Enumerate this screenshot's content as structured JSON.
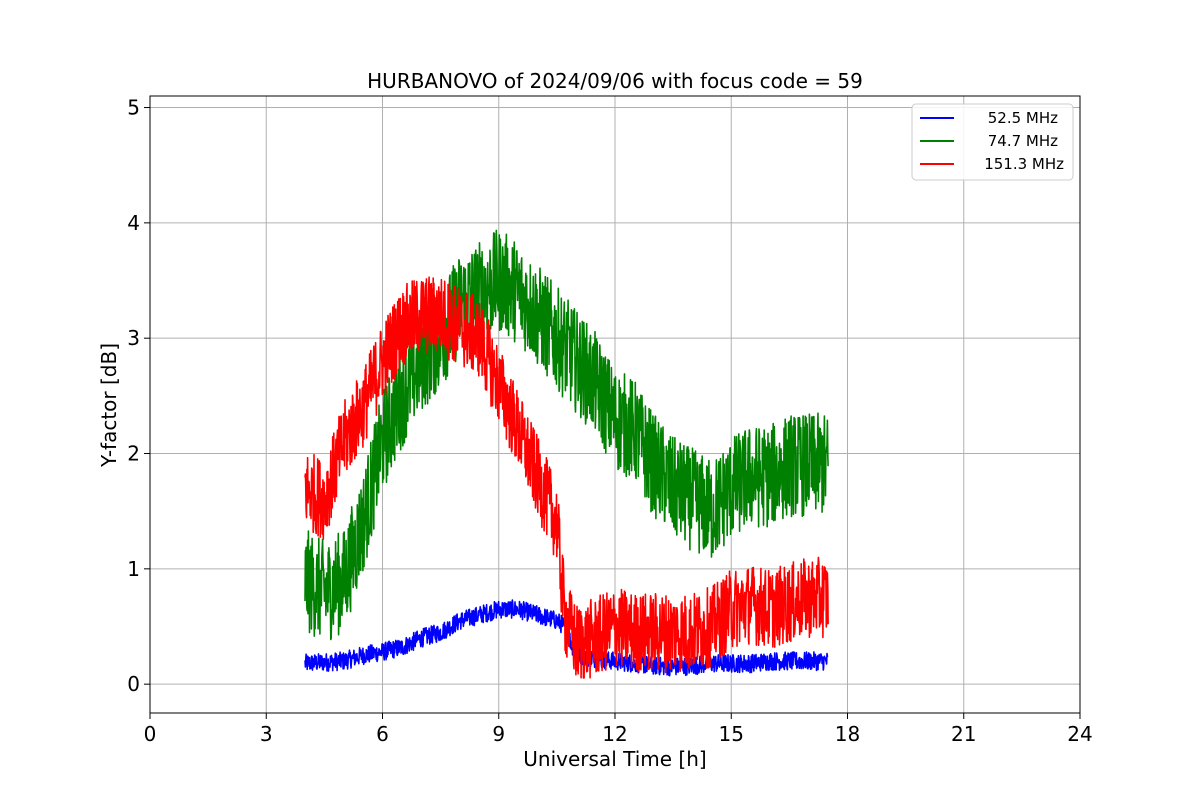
{
  "chart_data": {
    "type": "line",
    "title": "HURBANOVO of 2024/09/06 with focus code = 59",
    "xlabel": "Universal Time [h]",
    "ylabel": "Y-factor [dB]",
    "xlim": [
      0,
      24
    ],
    "ylim": [
      -0.25,
      5.1
    ],
    "xticks": [
      0,
      3,
      6,
      9,
      12,
      15,
      18,
      21,
      24
    ],
    "yticks": [
      0,
      1,
      2,
      3,
      4,
      5
    ],
    "grid": true,
    "legend_position": "top-right",
    "series": [
      {
        "name": "52.5 MHz",
        "color": "#0000ff",
        "noise": 0.08,
        "x": [
          4.0,
          4.5,
          5.0,
          5.5,
          6.0,
          6.5,
          7.0,
          7.5,
          8.0,
          8.5,
          9.0,
          9.5,
          10.0,
          10.5,
          10.7,
          11.0,
          11.5,
          12.0,
          12.5,
          13.0,
          13.5,
          14.0,
          14.5,
          15.0,
          15.5,
          16.0,
          16.5,
          17.0,
          17.5
        ],
        "y": [
          0.18,
          0.19,
          0.2,
          0.25,
          0.28,
          0.32,
          0.4,
          0.45,
          0.55,
          0.6,
          0.65,
          0.65,
          0.6,
          0.55,
          0.5,
          0.25,
          0.22,
          0.2,
          0.18,
          0.16,
          0.15,
          0.16,
          0.18,
          0.18,
          0.18,
          0.2,
          0.2,
          0.2,
          0.2
        ]
      },
      {
        "name": "74.7 MHz",
        "color": "#008000",
        "noise": 0.45,
        "x": [
          4.0,
          4.5,
          5.0,
          5.5,
          6.0,
          6.5,
          7.0,
          7.5,
          8.0,
          8.5,
          9.0,
          9.5,
          10.0,
          10.5,
          11.0,
          11.5,
          12.0,
          12.5,
          13.0,
          13.5,
          14.0,
          14.5,
          15.0,
          15.5,
          16.0,
          16.5,
          17.0,
          17.5
        ],
        "y": [
          0.9,
          0.8,
          0.9,
          1.4,
          2.1,
          2.5,
          2.8,
          3.0,
          3.3,
          3.4,
          3.5,
          3.4,
          3.2,
          3.0,
          2.8,
          2.6,
          2.3,
          2.2,
          1.9,
          1.7,
          1.6,
          1.5,
          1.7,
          1.8,
          1.8,
          1.9,
          1.9,
          1.9
        ]
      },
      {
        "name": "151.3 MHz",
        "color": "#ff0000",
        "noise": 0.35,
        "x": [
          4.0,
          4.5,
          5.0,
          5.5,
          6.0,
          6.5,
          7.0,
          7.5,
          8.0,
          8.5,
          9.0,
          9.5,
          10.0,
          10.5,
          10.7,
          11.0,
          11.5,
          12.0,
          12.5,
          13.0,
          13.5,
          14.0,
          14.5,
          15.0,
          15.5,
          16.0,
          16.5,
          17.0,
          17.5
        ],
        "y": [
          1.7,
          1.6,
          2.1,
          2.4,
          2.8,
          3.1,
          3.2,
          3.2,
          3.1,
          3.0,
          2.6,
          2.2,
          1.8,
          1.4,
          0.6,
          0.35,
          0.4,
          0.5,
          0.45,
          0.45,
          0.45,
          0.45,
          0.5,
          0.65,
          0.7,
          0.65,
          0.7,
          0.75,
          0.75
        ]
      }
    ]
  }
}
